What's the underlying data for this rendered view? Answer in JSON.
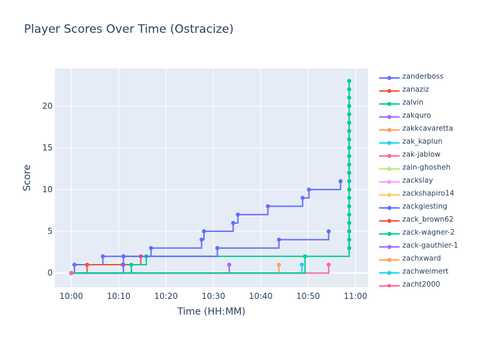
{
  "title": "Player Scores Over Time (Ostracize)",
  "chart_data": {
    "type": "line",
    "line_shape": "step",
    "title": "Player Scores Over Time (Ostracize)",
    "xlabel": "Time (HH:MM)",
    "ylabel": "Score",
    "x_ticks": [
      "10:00",
      "10:10",
      "10:20",
      "10:30",
      "10:40",
      "10:50",
      "11:00"
    ],
    "y_ticks": [
      0,
      5,
      10,
      15,
      20
    ],
    "xlim": [
      "09:56:30",
      "11:02:40"
    ],
    "ylim": [
      -1.7,
      24.5
    ],
    "grid": true,
    "legend_position": "right",
    "series": [
      {
        "name": "zanderboss",
        "color": "#636efa",
        "points": [
          [
            "10:00:00",
            0
          ],
          [
            "10:00:40",
            1
          ],
          [
            "10:06:40",
            2
          ],
          [
            "10:11:00",
            2
          ],
          [
            "10:16:50",
            3
          ],
          [
            "10:27:30",
            4
          ],
          [
            "10:28:00",
            5
          ],
          [
            "10:34:10",
            6
          ],
          [
            "10:35:10",
            7
          ],
          [
            "10:41:30",
            8
          ],
          [
            "10:48:50",
            9
          ],
          [
            "10:50:10",
            10
          ],
          [
            "10:56:50",
            11
          ]
        ]
      },
      {
        "name": "zanaziz",
        "color": "#ef553b",
        "points": [
          [
            "10:00:00",
            0
          ],
          [
            "10:03:20",
            1
          ],
          [
            "10:10:50",
            1
          ],
          [
            "10:14:40",
            2
          ]
        ]
      },
      {
        "name": "zalvin",
        "color": "#00cc96",
        "points": [
          [
            "10:00:00",
            0
          ],
          [
            "10:12:40",
            1
          ],
          [
            "10:15:50",
            2
          ],
          [
            "10:58:40",
            3
          ],
          [
            "10:58:40",
            4
          ],
          [
            "10:58:40",
            5
          ],
          [
            "10:58:40",
            6
          ],
          [
            "10:58:40",
            7
          ],
          [
            "10:58:40",
            8
          ],
          [
            "10:58:40",
            9
          ],
          [
            "10:58:40",
            10
          ],
          [
            "10:58:40",
            11
          ],
          [
            "10:58:40",
            12
          ],
          [
            "10:58:40",
            13
          ],
          [
            "10:58:40",
            14
          ],
          [
            "10:58:40",
            15
          ],
          [
            "10:58:40",
            16
          ],
          [
            "10:58:40",
            17
          ],
          [
            "10:58:40",
            18
          ],
          [
            "10:58:40",
            19
          ],
          [
            "10:58:40",
            20
          ],
          [
            "10:58:40",
            21
          ],
          [
            "10:58:40",
            22
          ],
          [
            "10:58:40",
            23
          ]
        ]
      },
      {
        "name": "zakquro",
        "color": "#ab63fa",
        "points": [
          [
            "10:00:00",
            0
          ],
          [
            "10:33:20",
            1
          ]
        ]
      },
      {
        "name": "zakkcavaretta",
        "color": "#ffa15a",
        "points": [
          [
            "10:00:00",
            0
          ],
          [
            "10:43:50",
            1
          ]
        ]
      },
      {
        "name": "zak_kaplun",
        "color": "#19d3f3",
        "points": [
          [
            "10:00:00",
            0
          ],
          [
            "10:48:40",
            1
          ]
        ]
      },
      {
        "name": "zak-jablow",
        "color": "#ff6692",
        "points": [
          [
            "10:00:00",
            0
          ],
          [
            "10:54:20",
            1
          ]
        ]
      },
      {
        "name": "zain-ghosheh",
        "color": "#b6e880",
        "points": [
          [
            "10:00:00",
            0
          ]
        ]
      },
      {
        "name": "zackslay",
        "color": "#ff97ff",
        "points": [
          [
            "10:00:00",
            0
          ]
        ]
      },
      {
        "name": "zackshapiro14",
        "color": "#fecb52",
        "points": [
          [
            "10:00:00",
            0
          ]
        ]
      },
      {
        "name": "zackgiesting",
        "color": "#636efa",
        "points": [
          [
            "10:00:00",
            0
          ],
          [
            "10:11:00",
            1
          ],
          [
            "10:11:00",
            2
          ],
          [
            "10:30:50",
            3
          ],
          [
            "10:43:50",
            4
          ],
          [
            "10:54:20",
            5
          ]
        ]
      },
      {
        "name": "zack_brown62",
        "color": "#ef553b",
        "points": [
          [
            "10:00:00",
            0
          ]
        ]
      },
      {
        "name": "zack-wagner-2",
        "color": "#00cc96",
        "points": [
          [
            "10:00:00",
            0
          ],
          [
            "10:49:20",
            2
          ]
        ]
      },
      {
        "name": "zack-gauthier-1",
        "color": "#ab63fa",
        "points": [
          [
            "10:00:00",
            0
          ]
        ]
      },
      {
        "name": "zachxward",
        "color": "#ffa15a",
        "points": [
          [
            "10:00:00",
            0
          ]
        ]
      },
      {
        "name": "zachweimert",
        "color": "#19d3f3",
        "points": [
          [
            "10:00:00",
            0
          ]
        ]
      },
      {
        "name": "zacht2000",
        "color": "#ff6692",
        "points": [
          [
            "10:00:00",
            0
          ]
        ]
      }
    ]
  }
}
